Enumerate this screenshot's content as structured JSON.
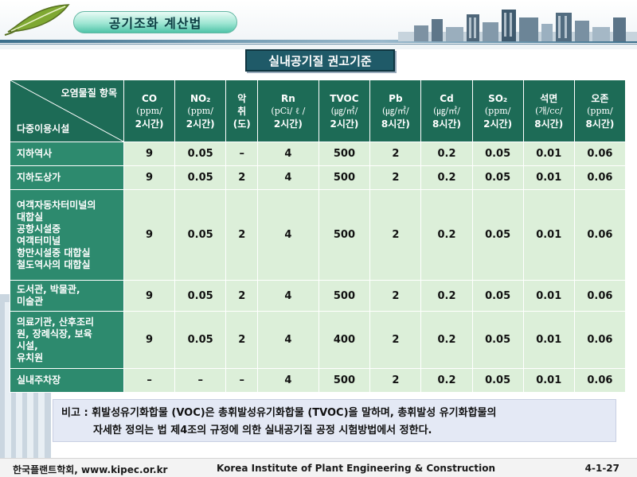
{
  "header": {
    "title": "공기조화 계산법"
  },
  "section_title": "실내공기질 권고기준",
  "table": {
    "corner": {
      "top": "오염물질 항목",
      "bottom": "다중이용시설"
    },
    "columns": [
      {
        "name": "CO",
        "unit1": "(ppm/",
        "unit2": "2시간)"
      },
      {
        "name": "NO₂",
        "unit1": "(ppm/",
        "unit2": "2시간)"
      },
      {
        "name": "악",
        "unit1": "취",
        "unit2": "(도)"
      },
      {
        "name": "Rn",
        "unit1": "(pCi/ ℓ /",
        "unit2": "2시간)"
      },
      {
        "name": "TVOC",
        "unit1": "(㎍/㎥/",
        "unit2": "2시간)"
      },
      {
        "name": "Pb",
        "unit1": "(㎍/㎥/",
        "unit2": "8시간)"
      },
      {
        "name": "Cd",
        "unit1": "(㎍/㎥/",
        "unit2": "8시간)"
      },
      {
        "name": "SO₂",
        "unit1": "(ppm/",
        "unit2": "2시간)"
      },
      {
        "name": "석면",
        "unit1": "(개/cc/",
        "unit2": "8시간)"
      },
      {
        "name": "오존",
        "unit1": "(ppm/",
        "unit2": "8시간)"
      }
    ],
    "rows": [
      {
        "facility": "지하역사",
        "values": [
          "9",
          "0.05",
          "–",
          "4",
          "500",
          "2",
          "0.2",
          "0.05",
          "0.01",
          "0.06"
        ]
      },
      {
        "facility": "지하도상가",
        "values": [
          "9",
          "0.05",
          "2",
          "4",
          "500",
          "2",
          "0.2",
          "0.05",
          "0.01",
          "0.06"
        ]
      },
      {
        "facility": "여객자동차터미널의\n대합실\n공항시설중\n여객터미널\n항만시설중 대합실\n철도역사의 대합실",
        "values": [
          "9",
          "0.05",
          "2",
          "4",
          "500",
          "2",
          "0.2",
          "0.05",
          "0.01",
          "0.06"
        ]
      },
      {
        "facility": "도서관, 박물관,\n미술관",
        "values": [
          "9",
          "0.05",
          "2",
          "4",
          "500",
          "2",
          "0.2",
          "0.05",
          "0.01",
          "0.06"
        ]
      },
      {
        "facility": "의료기관, 산후조리\n원, 장례식장, 보육\n시설,\n유치원",
        "values": [
          "9",
          "0.05",
          "2",
          "4",
          "400",
          "2",
          "0.2",
          "0.05",
          "0.01",
          "0.06"
        ]
      },
      {
        "facility": "실내주차장",
        "values": [
          "–",
          "–",
          "–",
          "4",
          "500",
          "2",
          "0.2",
          "0.05",
          "0.01",
          "0.06"
        ]
      }
    ]
  },
  "note": {
    "line1": "비고 : 휘발성유기화합물 (VOC)은 총휘발성유기화합물 (TVOC)을 말하며, 총휘발성 유기화합물의",
    "line2": "자세한 정의는 법 제4조의 규정에 의한 실내공기질 공정 시험방법에서 정한다."
  },
  "footer": {
    "org": "한국플랜트학회, www.kipec.or.kr",
    "institute": "Korea Institute of Plant Engineering & Construction",
    "page": "4-1-27"
  },
  "colors": {
    "header_green": "#1d6b56",
    "rowhead_green": "#2d8a6e",
    "cell_bg": "#dcefd9",
    "section_title_bg": "#1f5a68",
    "note_bg": "#e4e9f5"
  }
}
